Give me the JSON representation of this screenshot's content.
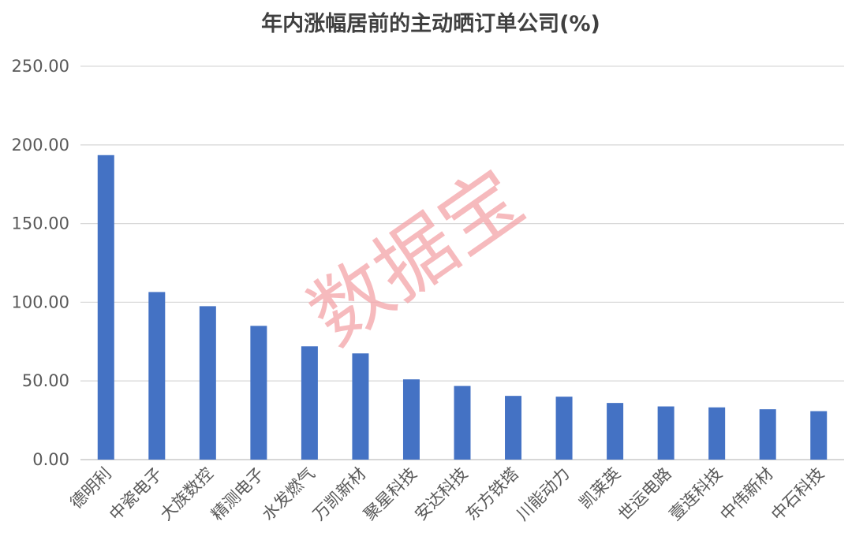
{
  "chart_data": {
    "type": "bar",
    "title": "年内涨幅居前的主动晒订单公司(%)",
    "categories": [
      "德明利",
      "中瓷电子",
      "大族数控",
      "精测电子",
      "水发燃气",
      "万凯新材",
      "聚星科技",
      "安达科技",
      "东方铁塔",
      "川能动力",
      "凯莱英",
      "世运电路",
      "壹连科技",
      "中伟新材",
      "中石科技"
    ],
    "values": [
      193.5,
      106.5,
      97.5,
      85.0,
      72.0,
      67.5,
      51.0,
      46.8,
      40.5,
      40.0,
      36.0,
      33.8,
      33.2,
      32.0,
      30.8
    ],
    "ylim": [
      0,
      250
    ],
    "yticks": [
      "0.00",
      "50.00",
      "100.00",
      "150.00",
      "200.00",
      "250.00"
    ],
    "bar_color": "#4472c4",
    "grid": true,
    "xlabel": "",
    "ylabel": ""
  },
  "watermark": "数据宝"
}
